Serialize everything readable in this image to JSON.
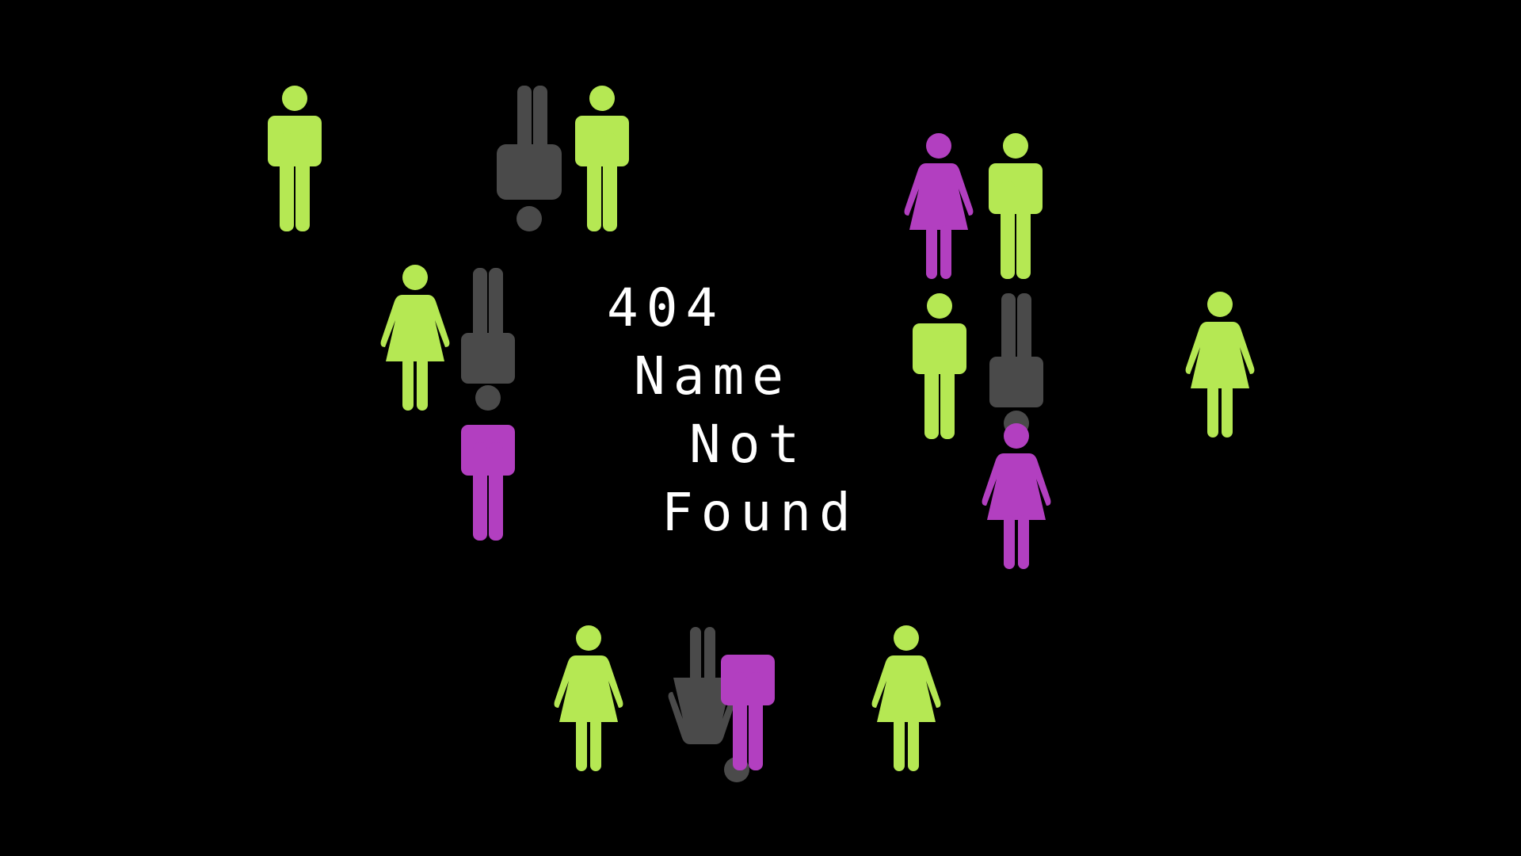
{
  "message": {
    "code": "404",
    "line1": "Name",
    "line2": "Not",
    "line3": "Found"
  },
  "colors": {
    "background": "#000000",
    "text": "#ffffff",
    "lime": "#b5e853",
    "magenta": "#b23fc0",
    "gray": "#4a4a4a"
  },
  "figures": [
    {
      "icon": "male-figure-icon",
      "color": "lime"
    },
    {
      "icon": "male-figure-upside-down-icon",
      "color": "gray"
    },
    {
      "icon": "male-figure-icon",
      "color": "lime"
    },
    {
      "icon": "female-figure-icon",
      "color": "magenta"
    },
    {
      "icon": "male-figure-icon",
      "color": "lime"
    },
    {
      "icon": "female-figure-icon",
      "color": "lime"
    },
    {
      "icon": "male-figure-upside-down-icon",
      "color": "gray"
    },
    {
      "icon": "headless-male-figure-icon",
      "color": "magenta"
    },
    {
      "icon": "male-figure-icon",
      "color": "lime"
    },
    {
      "icon": "male-figure-upside-down-icon",
      "color": "gray"
    },
    {
      "icon": "female-figure-icon",
      "color": "lime"
    },
    {
      "icon": "female-figure-icon",
      "color": "magenta"
    },
    {
      "icon": "female-figure-icon",
      "color": "lime"
    },
    {
      "icon": "female-figure-upside-down-icon",
      "color": "gray"
    },
    {
      "icon": "headless-male-figure-icon",
      "color": "magenta"
    },
    {
      "icon": "female-figure-icon",
      "color": "lime"
    }
  ]
}
